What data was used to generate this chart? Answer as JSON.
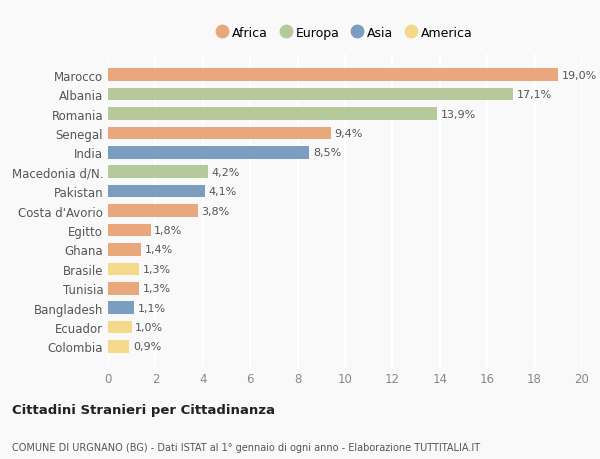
{
  "countries": [
    "Colombia",
    "Ecuador",
    "Bangladesh",
    "Tunisia",
    "Brasile",
    "Ghana",
    "Egitto",
    "Costa d'Avorio",
    "Pakistan",
    "Macedonia d/N.",
    "India",
    "Senegal",
    "Romania",
    "Albania",
    "Marocco"
  ],
  "values": [
    0.9,
    1.0,
    1.1,
    1.3,
    1.3,
    1.4,
    1.8,
    3.8,
    4.1,
    4.2,
    8.5,
    9.4,
    13.9,
    17.1,
    19.0
  ],
  "continents": [
    "America",
    "America",
    "Asia",
    "Africa",
    "America",
    "Africa",
    "Africa",
    "Africa",
    "Asia",
    "Europa",
    "Asia",
    "Africa",
    "Europa",
    "Europa",
    "Africa"
  ],
  "colors": {
    "Africa": "#E8A87C",
    "Europa": "#B5C99A",
    "Asia": "#7B9DC0",
    "America": "#F5D98B"
  },
  "legend_order": [
    "Africa",
    "Europa",
    "Asia",
    "America"
  ],
  "title": "Cittadini Stranieri per Cittadinanza",
  "subtitle": "COMUNE DI URGNANO (BG) - Dati ISTAT al 1° gennaio di ogni anno - Elaborazione TUTTITALIA.IT",
  "xlim": [
    0,
    20
  ],
  "xticks": [
    0,
    2,
    4,
    6,
    8,
    10,
    12,
    14,
    16,
    18,
    20
  ],
  "background_color": "#f9f9f9",
  "grid_color": "#ffffff",
  "bar_height": 0.65
}
